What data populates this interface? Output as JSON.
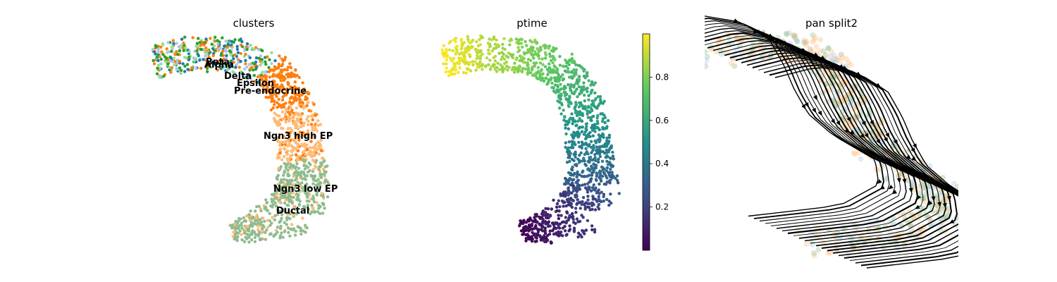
{
  "chart_data": [
    {
      "type": "scatter",
      "title": "clusters",
      "cluster_labels": [
        "Beta",
        "Alpha",
        "Delta",
        "Epsilon",
        "Pre-endocrine",
        "Ngn3 high EP",
        "Ngn3 low EP",
        "Ductal"
      ],
      "colors": {
        "Beta": "#1f77b4",
        "Alpha": "#98df8a",
        "Delta": "#2ca02c",
        "Epsilon": "#aec7e8",
        "Pre-endocrine": "#ff7f0e",
        "Ngn3 high EP": "#ffbb78",
        "Ngn3 low EP": "#8fbc8f",
        "Ductal": "#8fbc8f"
      }
    },
    {
      "type": "scatter",
      "title": "ptime",
      "colorbar": {
        "ticks": [
          "0.2",
          "0.4",
          "0.6",
          "0.8"
        ],
        "range": [
          0,
          1
        ],
        "colormap": "viridis"
      }
    },
    {
      "type": "scatter",
      "title": "pan split2",
      "overlay": "streamlines"
    }
  ]
}
